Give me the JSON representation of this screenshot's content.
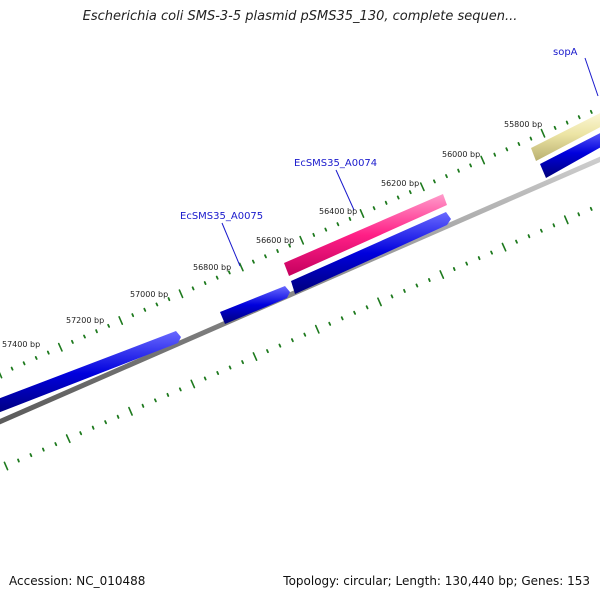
{
  "title": "Escherichia coli SMS-3-5 plasmid pSMS35_130, complete sequen...",
  "footer": {
    "accession": "Accession: NC_010488",
    "summary": "Topology: circular; Length: 130,440 bp; Genes: 153"
  },
  "colors": {
    "backbone": "#8a8a8a",
    "tick": "#1e7a1e",
    "cds": "#0000dd",
    "gene_pink": "#ff1f86",
    "gene_khaki": "#e9e2a2",
    "label": "#1a1acc"
  },
  "ruler_labels": [
    "55800 bp",
    "56000 bp",
    "56200 bp",
    "56400 bp",
    "56600 bp",
    "56800 bp",
    "57000 bp",
    "57200 bp",
    "57400 bp"
  ],
  "gene_labels": [
    "sopA",
    "EcSMS35_A0074",
    "EcSMS35_A0075"
  ]
}
